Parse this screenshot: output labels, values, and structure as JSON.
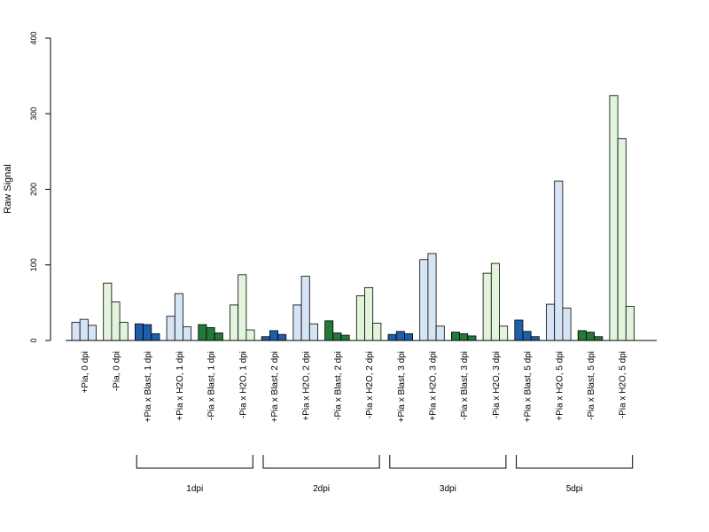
{
  "chart_data": {
    "type": "bar",
    "ylabel": "Raw Signal",
    "ylim": [
      0,
      400
    ],
    "yticks": [
      0,
      100,
      200,
      300,
      400
    ],
    "colors": {
      "plus_pia": "#d6e5f5",
      "minus_pia": "#e2f5dc",
      "plus_pia_blast": "#1f5fa9",
      "minus_pia_blast": "#24783a"
    },
    "categories": [
      {
        "label": "+Pia, 0 dpi",
        "color_key": "plus_pia",
        "values": [
          24,
          28,
          20
        ]
      },
      {
        "label": "-Pia, 0 dpi",
        "color_key": "minus_pia",
        "values": [
          76,
          51,
          24
        ]
      },
      {
        "label": "+Pia x Blast, 1 dpi",
        "color_key": "plus_pia_blast",
        "values": [
          22,
          21,
          9
        ]
      },
      {
        "label": "+Pia x H2O, 1 dpi",
        "color_key": "plus_pia",
        "values": [
          32,
          62,
          18
        ]
      },
      {
        "label": "-Pia x Blast, 1 dpi",
        "color_key": "minus_pia_blast",
        "values": [
          21,
          17,
          10
        ]
      },
      {
        "label": "-Pia x H2O, 1 dpi",
        "color_key": "minus_pia",
        "values": [
          47,
          87,
          14
        ]
      },
      {
        "label": "+Pia x Blast, 2 dpi",
        "color_key": "plus_pia_blast",
        "values": [
          5,
          13,
          8
        ]
      },
      {
        "label": "+Pia x H2O, 2 dpi",
        "color_key": "plus_pia",
        "values": [
          47,
          85,
          22
        ]
      },
      {
        "label": "-Pia x Blast, 2 dpi",
        "color_key": "minus_pia_blast",
        "values": [
          26,
          10,
          7
        ]
      },
      {
        "label": "-Pia x H2O, 2 dpi",
        "color_key": "minus_pia",
        "values": [
          59,
          70,
          23
        ]
      },
      {
        "label": "+Pia x Blast, 3 dpi",
        "color_key": "plus_pia_blast",
        "values": [
          8,
          12,
          9
        ]
      },
      {
        "label": "+Pia x H2O, 3 dpi",
        "color_key": "plus_pia",
        "values": [
          107,
          115,
          19
        ]
      },
      {
        "label": "-Pia x Blast, 3 dpi",
        "color_key": "minus_pia_blast",
        "values": [
          11,
          9,
          6
        ]
      },
      {
        "label": "-Pia x H2O, 3 dpi",
        "color_key": "minus_pia",
        "values": [
          89,
          102,
          19
        ]
      },
      {
        "label": "+Pia x Blast, 5 dpi",
        "color_key": "plus_pia_blast",
        "values": [
          27,
          12,
          5
        ]
      },
      {
        "label": "+Pia x H2O, 5 dpi",
        "color_key": "plus_pia",
        "values": [
          48,
          211,
          43
        ]
      },
      {
        "label": "-Pia x Blast, 5 dpi",
        "color_key": "minus_pia_blast",
        "values": [
          13,
          11,
          5
        ]
      },
      {
        "label": "-Pia x H2O, 5 dpi",
        "color_key": "minus_pia",
        "values": [
          324,
          267,
          45
        ]
      }
    ],
    "groups": [
      {
        "label": "1dpi",
        "first": 2,
        "last": 5
      },
      {
        "label": "2dpi",
        "first": 6,
        "last": 9
      },
      {
        "label": "3dpi",
        "first": 10,
        "last": 13
      },
      {
        "label": "5dpi",
        "first": 14,
        "last": 17
      }
    ]
  }
}
